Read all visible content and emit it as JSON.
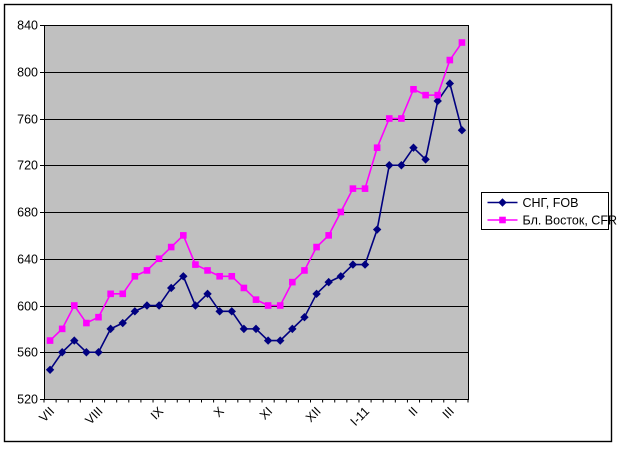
{
  "window": {
    "background": "#FFFFFF",
    "border_color": "#000000"
  },
  "chart_data": {
    "type": "line",
    "title": "",
    "xlabel": "",
    "ylabel": "",
    "ylim": [
      520,
      840
    ],
    "y_ticks": [
      520,
      560,
      600,
      640,
      680,
      720,
      760,
      800,
      840
    ],
    "grid": true,
    "plot_bg": "#C0C0C0",
    "gridline_color": "#000000",
    "n_points": 35,
    "x_month_labels": [
      "VII",
      "VIII",
      "IX",
      "X",
      "XI",
      "XII",
      "I-11",
      "II",
      "III"
    ],
    "x_month_label_indices": [
      0,
      4,
      9,
      14,
      18,
      22,
      26,
      30,
      33
    ],
    "legend_position": "middle-right",
    "series": [
      {
        "name": "СНГ, FOB",
        "color": "#000080",
        "marker": "diamond",
        "values": [
          545,
          560,
          570,
          560,
          560,
          580,
          585,
          595,
          600,
          600,
          615,
          625,
          600,
          610,
          595,
          595,
          580,
          580,
          570,
          570,
          580,
          590,
          610,
          620,
          625,
          635,
          635,
          665,
          720,
          720,
          735,
          725,
          775,
          790,
          750
        ]
      },
      {
        "name": "Бл. Восток, CFR",
        "color": "#FF00FF",
        "marker": "square",
        "values": [
          570,
          580,
          600,
          585,
          590,
          610,
          610,
          625,
          630,
          640,
          650,
          660,
          635,
          630,
          625,
          625,
          615,
          605,
          600,
          600,
          620,
          630,
          650,
          660,
          680,
          700,
          700,
          735,
          760,
          760,
          785,
          780,
          780,
          810,
          825
        ]
      }
    ]
  }
}
